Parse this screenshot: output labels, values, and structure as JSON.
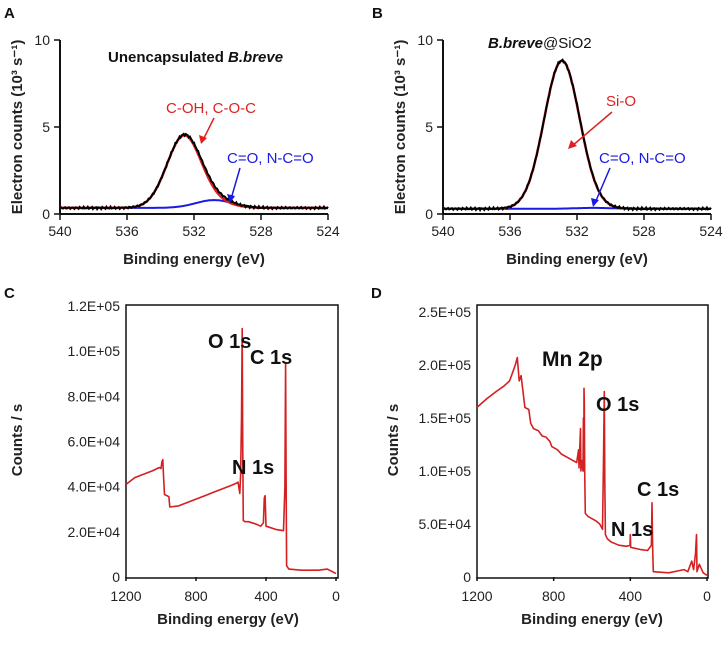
{
  "chart_data": [
    {
      "panel": "A",
      "type": "line",
      "title": "Unencapsulated B.breve",
      "title_parts": [
        "Unencapsulated ",
        "B.breve"
      ],
      "xlabel": "Binding energy (eV)",
      "ylabel": "Electron counts (10³ s⁻¹)",
      "xlim": [
        540,
        524
      ],
      "ylim": [
        0,
        10
      ],
      "xticks": [
        540,
        536,
        532,
        528,
        524
      ],
      "yticks": [
        0,
        5,
        10
      ],
      "peaks": [
        {
          "name": "C-OH, C-O-C",
          "center": 532.6,
          "height": 4.1,
          "fwhm": 2.4,
          "color": "#e02020"
        },
        {
          "name": "C=O, N-C=O",
          "center": 530.8,
          "height": 0.45,
          "fwhm": 2.6,
          "color": "#1a1ae0"
        }
      ],
      "baseline": 0.35,
      "annotations": [
        {
          "text": "C-OH, C-O-C",
          "color": "#e02020"
        },
        {
          "text": "C=O, N-C=O",
          "color": "#1a1ae0"
        }
      ]
    },
    {
      "panel": "B",
      "type": "line",
      "title": "B.breve@SiO2",
      "title_parts": [
        "B.breve",
        "@SiO2"
      ],
      "xlabel": "Binding energy (eV)",
      "ylabel": "Electron counts (10³ s⁻¹)",
      "xlim": [
        540,
        524
      ],
      "ylim": [
        0,
        10
      ],
      "xticks": [
        540,
        536,
        532,
        528,
        524
      ],
      "yticks": [
        0,
        5,
        10
      ],
      "peaks": [
        {
          "name": "Si-O",
          "center": 532.9,
          "height": 8.5,
          "fwhm": 2.5,
          "color": "#e02020"
        },
        {
          "name": "C=O, N-C=O",
          "center": 531.0,
          "height": 0.05,
          "fwhm": 2.6,
          "color": "#1a1ae0"
        }
      ],
      "baseline": 0.3,
      "annotations": [
        {
          "text": "Si-O",
          "color": "#e02020"
        },
        {
          "text": "C=O, N-C=O",
          "color": "#1a1ae0"
        }
      ]
    },
    {
      "panel": "C",
      "type": "line",
      "title": "",
      "xlabel": "Binding energy (eV)",
      "ylabel": "Counts / s",
      "xlim": [
        1200,
        0
      ],
      "ylim": [
        0,
        120000
      ],
      "xticks": [
        1200,
        800,
        400,
        0
      ],
      "yticks": [
        0,
        20000,
        40000,
        60000,
        80000,
        100000,
        120000
      ],
      "ytick_labels": [
        "0",
        "2.0E+04",
        "4.0E+04",
        "6.0E+04",
        "8.0E+04",
        "1.0E+05",
        "1.2E+05"
      ],
      "spectrum": [
        [
          1200,
          41000
        ],
        [
          1150,
          44000
        ],
        [
          1100,
          45500
        ],
        [
          1050,
          47000
        ],
        [
          1010,
          48500
        ],
        [
          1000,
          48000
        ],
        [
          995,
          51000
        ],
        [
          990,
          52000
        ],
        [
          985,
          44000
        ],
        [
          980,
          36500
        ],
        [
          965,
          36000
        ],
        [
          955,
          35500
        ],
        [
          950,
          31000
        ],
        [
          900,
          31500
        ],
        [
          850,
          33000
        ],
        [
          800,
          34500
        ],
        [
          750,
          36000
        ],
        [
          700,
          37500
        ],
        [
          650,
          39000
        ],
        [
          600,
          40500
        ],
        [
          570,
          41500
        ],
        [
          560,
          42000
        ],
        [
          550,
          37000
        ],
        [
          545,
          45000
        ],
        [
          540,
          70000
        ],
        [
          536,
          110000
        ],
        [
          533,
          60000
        ],
        [
          530,
          25000
        ],
        [
          520,
          24500
        ],
        [
          500,
          24500
        ],
        [
          460,
          23500
        ],
        [
          430,
          22500
        ],
        [
          415,
          24000
        ],
        [
          410,
          35000
        ],
        [
          405,
          36000
        ],
        [
          400,
          22500
        ],
        [
          380,
          22000
        ],
        [
          340,
          21000
        ],
        [
          300,
          20500
        ],
        [
          292,
          40000
        ],
        [
          288,
          95000
        ],
        [
          285,
          45000
        ],
        [
          282,
          5000
        ],
        [
          270,
          3500
        ],
        [
          200,
          3000
        ],
        [
          100,
          3000
        ],
        [
          50,
          3500
        ],
        [
          0,
          1500
        ]
      ],
      "annotations": [
        {
          "text": "O 1s",
          "x": 536
        },
        {
          "text": "C 1s",
          "x": 285
        },
        {
          "text": "N 1s",
          "x": 400
        }
      ]
    },
    {
      "panel": "D",
      "type": "line",
      "title": "",
      "xlabel": "Binding energy (eV)",
      "ylabel": "Counts / s",
      "xlim": [
        1200,
        0
      ],
      "ylim": [
        0,
        250000
      ],
      "xticks": [
        1200,
        800,
        400,
        0
      ],
      "yticks": [
        0,
        50000,
        100000,
        150000,
        200000,
        250000
      ],
      "ytick_labels": [
        "0",
        "5.0E+04",
        "1.0E+05",
        "1.5E+05",
        "2.0E+05",
        "2.5E+05"
      ],
      "spectrum": [
        [
          1200,
          160000
        ],
        [
          1150,
          168000
        ],
        [
          1100,
          175000
        ],
        [
          1060,
          180000
        ],
        [
          1030,
          185000
        ],
        [
          1010,
          195000
        ],
        [
          1000,
          200000
        ],
        [
          990,
          207000
        ],
        [
          980,
          185000
        ],
        [
          970,
          190000
        ],
        [
          960,
          175000
        ],
        [
          950,
          160000
        ],
        [
          930,
          158000
        ],
        [
          920,
          145000
        ],
        [
          905,
          140000
        ],
        [
          880,
          138000
        ],
        [
          860,
          133000
        ],
        [
          840,
          132000
        ],
        [
          820,
          128000
        ],
        [
          810,
          123000
        ],
        [
          780,
          120000
        ],
        [
          760,
          116000
        ],
        [
          740,
          114000
        ],
        [
          720,
          112000
        ],
        [
          700,
          110000
        ],
        [
          680,
          108000
        ],
        [
          670,
          120000
        ],
        [
          668,
          103000
        ],
        [
          660,
          140000
        ],
        [
          658,
          100000
        ],
        [
          655,
          110000
        ],
        [
          650,
          105000
        ],
        [
          647,
          100000
        ],
        [
          645,
          150000
        ],
        [
          643,
          100000
        ],
        [
          642,
          178000
        ],
        [
          640,
          165000
        ],
        [
          638,
          100000
        ],
        [
          635,
          60000
        ],
        [
          620,
          57000
        ],
        [
          600,
          55000
        ],
        [
          580,
          53000
        ],
        [
          560,
          50000
        ],
        [
          545,
          45000
        ],
        [
          540,
          110000
        ],
        [
          536,
          175000
        ],
        [
          533,
          90000
        ],
        [
          530,
          40000
        ],
        [
          520,
          36000
        ],
        [
          500,
          33000
        ],
        [
          460,
          30000
        ],
        [
          420,
          29000
        ],
        [
          402,
          30000
        ],
        [
          400,
          40000
        ],
        [
          398,
          28000
        ],
        [
          350,
          26000
        ],
        [
          310,
          25000
        ],
        [
          290,
          30000
        ],
        [
          287,
          70000
        ],
        [
          284,
          30000
        ],
        [
          280,
          5000
        ],
        [
          200,
          4000
        ],
        [
          120,
          7000
        ],
        [
          100,
          5000
        ],
        [
          80,
          15000
        ],
        [
          70,
          7000
        ],
        [
          60,
          22000
        ],
        [
          55,
          40000
        ],
        [
          52,
          5000
        ],
        [
          40,
          12000
        ],
        [
          20,
          4000
        ],
        [
          0,
          1500
        ]
      ],
      "annotations": [
        {
          "text": "Mn 2p",
          "x": 700
        },
        {
          "text": "O 1s",
          "x": 536
        },
        {
          "text": "C 1s",
          "x": 285
        },
        {
          "text": "N 1s",
          "x": 400
        }
      ]
    }
  ],
  "panel_labels": [
    "A",
    "B",
    "C",
    "D"
  ],
  "colors": {
    "envelope": "#000000",
    "fit": "#e02020",
    "minor": "#1a1ae0",
    "survey": "#d42020",
    "axis": "#111111"
  }
}
